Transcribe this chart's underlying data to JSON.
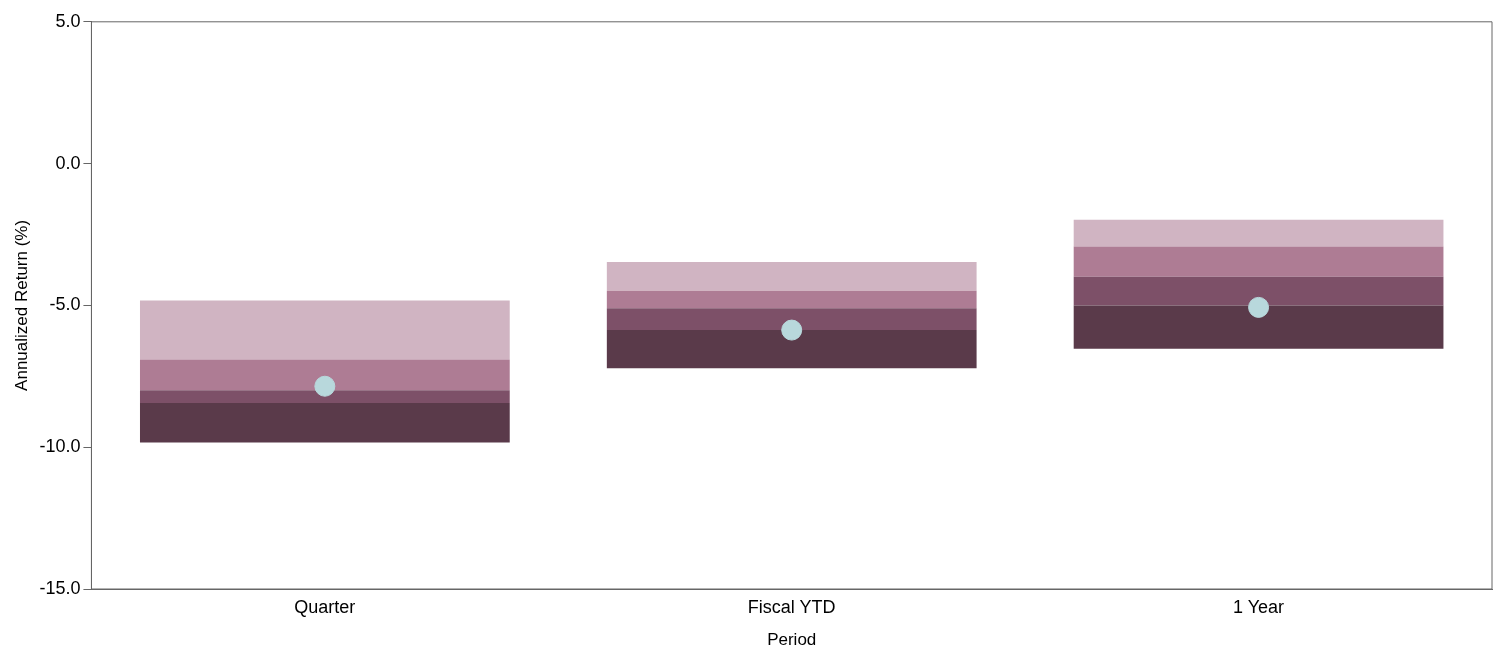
{
  "chart_data": {
    "type": "bar",
    "categories": [
      "Quarter",
      "Fiscal YTD",
      "1 Year"
    ],
    "series": [
      {
        "color": "#5a3a4a",
        "base": [
          -9.83,
          -7.22,
          -6.53
        ],
        "values": [
          1.39,
          1.35,
          1.53
        ]
      },
      {
        "color": "#7d5068",
        "base": [
          -8.44,
          -5.87,
          -5.0
        ],
        "values": [
          0.45,
          0.77,
          1.01
        ]
      },
      {
        "color": "#ae7c94",
        "base": [
          -7.99,
          -5.1,
          -3.99
        ],
        "values": [
          1.08,
          0.62,
          1.07
        ]
      },
      {
        "color": "#d0b4c2",
        "base": [
          -6.91,
          -4.48,
          -2.92
        ],
        "values": [
          2.08,
          1.01,
          0.94
        ]
      },
      {
        "type": "scatter",
        "color": "#b8d8dc",
        "x": [
          "Quarter",
          "Fiscal YTD",
          "1 Year"
        ],
        "values": [
          -7.85,
          -5.87,
          -5.07
        ]
      }
    ],
    "ylim": [
      -15,
      5
    ],
    "yticks": [
      {
        "value": -15,
        "label": "-15.0"
      },
      {
        "value": -10,
        "label": "-10.0"
      },
      {
        "value": -5,
        "label": "-5.0"
      },
      {
        "value": 0,
        "label": "0.0"
      },
      {
        "value": 5,
        "label": "5.0"
      }
    ],
    "xlabel": "Period",
    "ylabel": "Annualized Return (%)",
    "grid": false,
    "legend": false,
    "marker": "circle"
  }
}
